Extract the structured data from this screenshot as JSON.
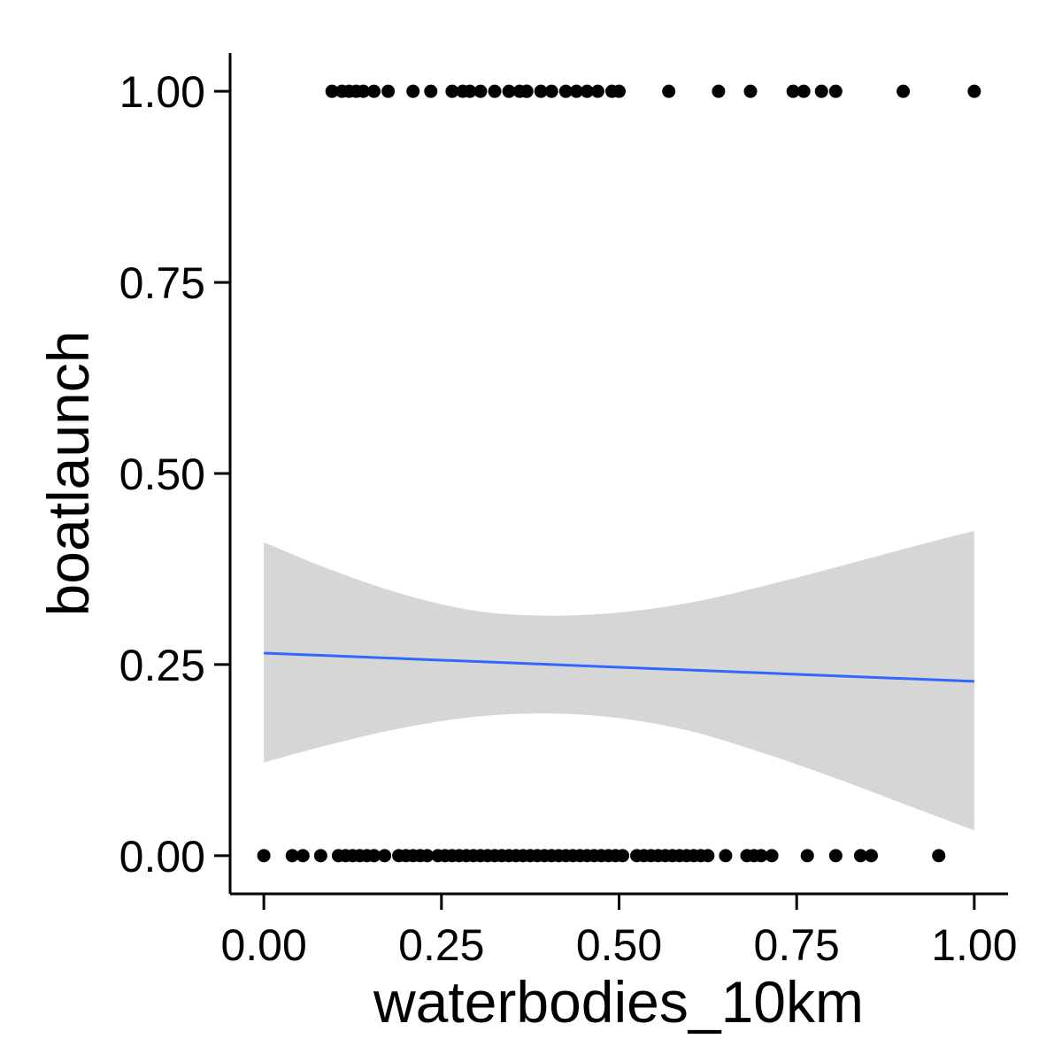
{
  "chart_data": {
    "type": "scatter",
    "xlabel": "waterbodies_10km",
    "ylabel": "boatlaunch",
    "xlim": [
      -0.0475,
      1.0475
    ],
    "ylim": [
      -0.05,
      1.05
    ],
    "x_ticks": [
      0.0,
      0.25,
      0.5,
      0.75,
      1.0
    ],
    "x_tick_labels": [
      "0.00",
      "0.25",
      "0.50",
      "0.75",
      "1.00"
    ],
    "y_ticks": [
      0.0,
      0.25,
      0.5,
      0.75,
      1.0
    ],
    "y_tick_labels": [
      "0.00",
      "0.25",
      "0.50",
      "0.75",
      "1.00"
    ],
    "grid": false,
    "legend": "none",
    "series": [
      {
        "kind": "points",
        "color": "#000000",
        "points": [
          {
            "x": 0.096,
            "y": 1
          },
          {
            "x": 0.11,
            "y": 1
          },
          {
            "x": 0.12,
            "y": 1
          },
          {
            "x": 0.13,
            "y": 1
          },
          {
            "x": 0.14,
            "y": 1
          },
          {
            "x": 0.155,
            "y": 1
          },
          {
            "x": 0.175,
            "y": 1
          },
          {
            "x": 0.21,
            "y": 1
          },
          {
            "x": 0.235,
            "y": 1
          },
          {
            "x": 0.265,
            "y": 1
          },
          {
            "x": 0.28,
            "y": 1
          },
          {
            "x": 0.29,
            "y": 1
          },
          {
            "x": 0.305,
            "y": 1
          },
          {
            "x": 0.325,
            "y": 1
          },
          {
            "x": 0.345,
            "y": 1
          },
          {
            "x": 0.36,
            "y": 1
          },
          {
            "x": 0.37,
            "y": 1
          },
          {
            "x": 0.37,
            "y": 1
          },
          {
            "x": 0.39,
            "y": 1
          },
          {
            "x": 0.405,
            "y": 1
          },
          {
            "x": 0.425,
            "y": 1
          },
          {
            "x": 0.44,
            "y": 1
          },
          {
            "x": 0.455,
            "y": 1
          },
          {
            "x": 0.47,
            "y": 1
          },
          {
            "x": 0.5,
            "y": 1
          },
          {
            "x": 0.49,
            "y": 1
          },
          {
            "x": 0.57,
            "y": 1
          },
          {
            "x": 0.64,
            "y": 1
          },
          {
            "x": 0.685,
            "y": 1
          },
          {
            "x": 0.745,
            "y": 1
          },
          {
            "x": 0.76,
            "y": 1
          },
          {
            "x": 0.785,
            "y": 1
          },
          {
            "x": 0.805,
            "y": 1
          },
          {
            "x": 0.9,
            "y": 1
          },
          {
            "x": 1.0,
            "y": 1
          },
          {
            "x": 0.0,
            "y": 0
          },
          {
            "x": 0.04,
            "y": 0
          },
          {
            "x": 0.055,
            "y": 0
          },
          {
            "x": 0.08,
            "y": 0
          },
          {
            "x": 0.105,
            "y": 0
          },
          {
            "x": 0.115,
            "y": 0
          },
          {
            "x": 0.125,
            "y": 0
          },
          {
            "x": 0.135,
            "y": 0
          },
          {
            "x": 0.145,
            "y": 0
          },
          {
            "x": 0.155,
            "y": 0
          },
          {
            "x": 0.17,
            "y": 0
          },
          {
            "x": 0.19,
            "y": 0
          },
          {
            "x": 0.2,
            "y": 0
          },
          {
            "x": 0.21,
            "y": 0
          },
          {
            "x": 0.22,
            "y": 0
          },
          {
            "x": 0.23,
            "y": 0
          },
          {
            "x": 0.245,
            "y": 0
          },
          {
            "x": 0.255,
            "y": 0
          },
          {
            "x": 0.265,
            "y": 0
          },
          {
            "x": 0.275,
            "y": 0
          },
          {
            "x": 0.285,
            "y": 0
          },
          {
            "x": 0.295,
            "y": 0
          },
          {
            "x": 0.305,
            "y": 0
          },
          {
            "x": 0.315,
            "y": 0
          },
          {
            "x": 0.325,
            "y": 0
          },
          {
            "x": 0.335,
            "y": 0
          },
          {
            "x": 0.345,
            "y": 0
          },
          {
            "x": 0.355,
            "y": 0
          },
          {
            "x": 0.365,
            "y": 0
          },
          {
            "x": 0.375,
            "y": 0
          },
          {
            "x": 0.385,
            "y": 0
          },
          {
            "x": 0.395,
            "y": 0
          },
          {
            "x": 0.405,
            "y": 0
          },
          {
            "x": 0.415,
            "y": 0
          },
          {
            "x": 0.425,
            "y": 0
          },
          {
            "x": 0.435,
            "y": 0
          },
          {
            "x": 0.445,
            "y": 0
          },
          {
            "x": 0.455,
            "y": 0
          },
          {
            "x": 0.465,
            "y": 0
          },
          {
            "x": 0.475,
            "y": 0
          },
          {
            "x": 0.485,
            "y": 0
          },
          {
            "x": 0.495,
            "y": 0
          },
          {
            "x": 0.505,
            "y": 0
          },
          {
            "x": 0.525,
            "y": 0
          },
          {
            "x": 0.535,
            "y": 0
          },
          {
            "x": 0.545,
            "y": 0
          },
          {
            "x": 0.555,
            "y": 0
          },
          {
            "x": 0.565,
            "y": 0
          },
          {
            "x": 0.575,
            "y": 0
          },
          {
            "x": 0.585,
            "y": 0
          },
          {
            "x": 0.595,
            "y": 0
          },
          {
            "x": 0.605,
            "y": 0
          },
          {
            "x": 0.615,
            "y": 0
          },
          {
            "x": 0.625,
            "y": 0
          },
          {
            "x": 0.65,
            "y": 0
          },
          {
            "x": 0.68,
            "y": 0
          },
          {
            "x": 0.69,
            "y": 0
          },
          {
            "x": 0.7,
            "y": 0
          },
          {
            "x": 0.715,
            "y": 0
          },
          {
            "x": 0.765,
            "y": 0
          },
          {
            "x": 0.805,
            "y": 0
          },
          {
            "x": 0.84,
            "y": 0
          },
          {
            "x": 0.855,
            "y": 0
          },
          {
            "x": 0.95,
            "y": 0
          }
        ]
      },
      {
        "kind": "fit_line",
        "method": "linear",
        "color": "#3366FF",
        "x": [
          0.0,
          1.0
        ],
        "y": [
          0.265,
          0.228
        ]
      },
      {
        "kind": "confidence_band",
        "color": "#d6d6d6",
        "x": [
          0.0,
          0.1,
          0.2,
          0.3,
          0.4,
          0.5,
          0.6,
          0.7,
          0.8,
          0.9,
          1.0
        ],
        "lower": [
          0.122,
          0.147,
          0.168,
          0.182,
          0.186,
          0.18,
          0.163,
          0.135,
          0.103,
          0.068,
          0.033
        ],
        "upper": [
          0.41,
          0.372,
          0.341,
          0.32,
          0.314,
          0.318,
          0.331,
          0.352,
          0.376,
          0.401,
          0.425
        ]
      }
    ]
  }
}
